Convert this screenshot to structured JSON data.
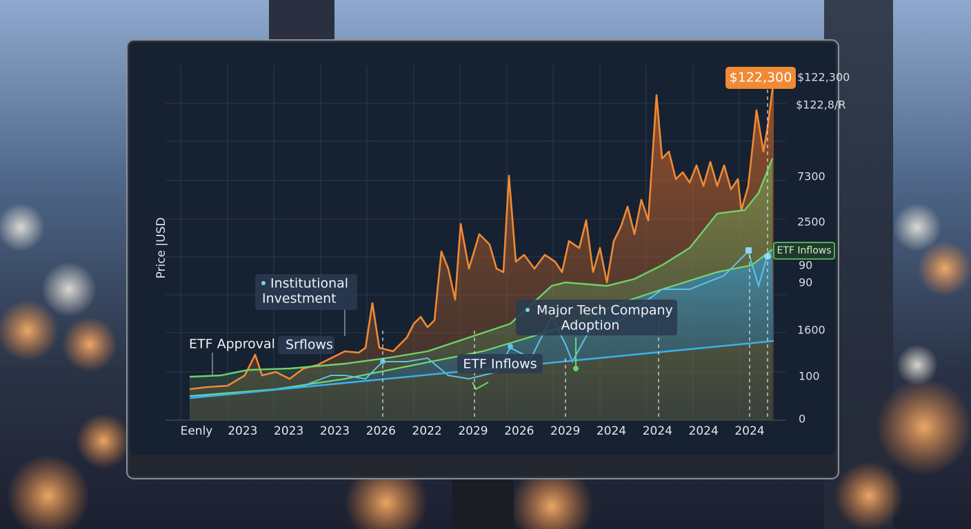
{
  "screen": {
    "y_axis_title": "Price |USD",
    "price_badge": "$122,300",
    "y_labels": [
      "$122,300",
      "$122,8/R",
      "7300",
      "2500",
      "90",
      "90",
      "1600",
      "100",
      "0"
    ],
    "x_labels": [
      "Eenly",
      "2023",
      "2023",
      "2023",
      "2026",
      "2022",
      "2029",
      "2026",
      "2029",
      "2024",
      "2024",
      "2024",
      "2024"
    ],
    "annotations": {
      "institutional": [
        "Institutional",
        "Investment"
      ],
      "etf_approval": "ETF Approval",
      "srflows": "Srflows",
      "major_tech": [
        "Major Tech Company",
        "Adoption"
      ],
      "etf_inflows": "ETF Inflows",
      "etf_inflows_tag": "ETF Inflows"
    }
  }
}
